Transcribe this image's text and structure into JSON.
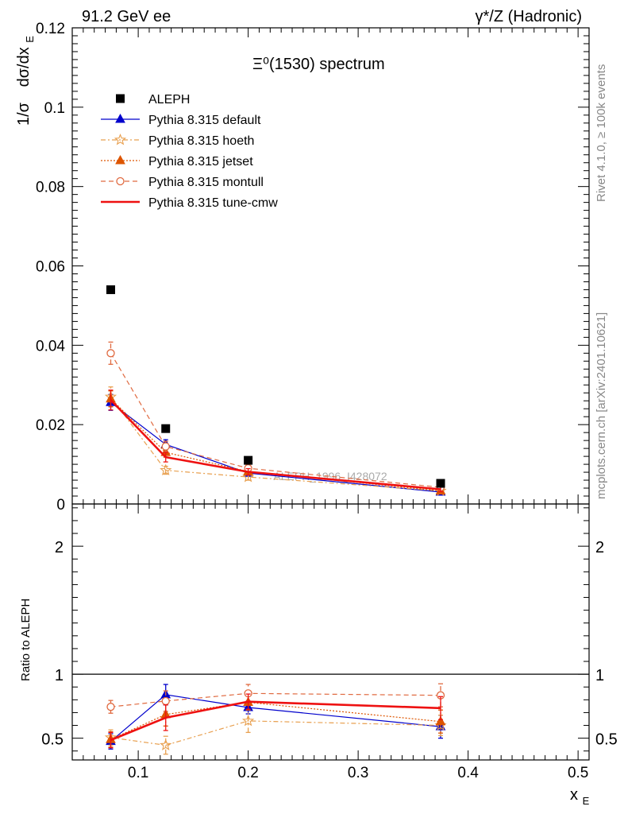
{
  "header": {
    "energy_label": "91.2 GeV ee",
    "process_label": "γ*/Z (Hadronic)"
  },
  "side": {
    "rivet_label": "Rivet 4.1.0, ≥ 100k events",
    "mcplots_label": "mcplots.cern.ch [arXiv:2401.10621]"
  },
  "chart_data": {
    "type": "scatter",
    "title": "Ξ⁰(1530) spectrum",
    "ylabel": "1/σ dσ/dx_E",
    "ylabel_parts": {
      "prefix": "1/σ",
      "d": "dσ/dx",
      "sub": "E"
    },
    "xlabel": "x_E",
    "xlabel_parts": {
      "main": "x",
      "sub": "E"
    },
    "ratio_ylabel": "Ratio to ALEPH",
    "watermark": "ALEPH_1996_I428072",
    "xlim": [
      0.04,
      0.51
    ],
    "ylim": [
      0,
      0.12
    ],
    "ratio_ylim": [
      0.33,
      2.33
    ],
    "x": [
      0.075,
      0.125,
      0.2,
      0.375
    ],
    "xticks": [
      0.1,
      0.2,
      0.3,
      0.4,
      0.5
    ],
    "xtick_labels": [
      "0.1",
      "0.2",
      "0.3",
      "0.4",
      "0.5"
    ],
    "yticks": [
      0,
      0.02,
      0.04,
      0.06,
      0.08,
      0.1,
      0.12
    ],
    "ytick_labels": [
      "0",
      "0.02",
      "0.04",
      "0.06",
      "0.08",
      "0.1",
      "0.12"
    ],
    "ratio_yticks": [
      0.5,
      1,
      2
    ],
    "ratio_ytick_labels": [
      "0.5",
      "1",
      "2"
    ],
    "data": {
      "name": "ALEPH",
      "values": [
        0.054,
        0.019,
        0.011,
        0.0052
      ],
      "color": "#000000"
    },
    "series": [
      {
        "name": "Pythia 8.315 default",
        "color": "#0000cc",
        "dash": "",
        "marker": "triangle",
        "width": 1.2,
        "values": [
          0.0256,
          0.015,
          0.0078,
          0.003
        ],
        "errors": [
          0.002,
          0.0012,
          0.0008,
          0.0005
        ],
        "ratio": [
          0.475,
          0.84,
          0.74,
          0.59
        ],
        "ratio_err": [
          0.06,
          0.08,
          0.05,
          0.09
        ]
      },
      {
        "name": "Pythia 8.315 hoeth",
        "color": "#e8a050",
        "dash": "6,3,2,3",
        "marker": "star",
        "width": 1.2,
        "values": [
          0.027,
          0.0085,
          0.0068,
          0.0033
        ],
        "errors": [
          0.0025,
          0.001,
          0.0008,
          0.0005
        ],
        "ratio": [
          0.505,
          0.445,
          0.635,
          0.6
        ],
        "ratio_err": [
          0.06,
          0.07,
          0.09,
          0.08
        ]
      },
      {
        "name": "Pythia 8.315 jetset",
        "color": "#dd5500",
        "dash": "2,2",
        "marker": "triangle",
        "width": 1.2,
        "values": [
          0.0265,
          0.013,
          0.0082,
          0.0033
        ],
        "errors": [
          0.002,
          0.0012,
          0.0008,
          0.0005
        ],
        "ratio": [
          0.49,
          0.685,
          0.78,
          0.63
        ],
        "ratio_err": [
          0.06,
          0.09,
          0.06,
          0.09
        ]
      },
      {
        "name": "Pythia 8.315 montull",
        "color": "#e06a40",
        "dash": "6,4",
        "marker": "circle",
        "width": 1.2,
        "values": [
          0.038,
          0.0145,
          0.009,
          0.0042
        ],
        "errors": [
          0.0028,
          0.0013,
          0.0008,
          0.0006
        ],
        "ratio": [
          0.745,
          0.79,
          0.85,
          0.835
        ],
        "ratio_err": [
          0.05,
          0.08,
          0.07,
          0.09
        ]
      },
      {
        "name": "Pythia 8.315 tune-cmw",
        "color": "#ee1111",
        "dash": "",
        "marker": "none",
        "width": 2.6,
        "values": [
          0.0262,
          0.0118,
          0.0081,
          0.0037
        ],
        "errors": [
          0.0025,
          0.0012,
          0.0008,
          0.0006
        ],
        "ratio": [
          0.485,
          0.66,
          0.785,
          0.735
        ],
        "ratio_err": [
          0.06,
          0.1,
          0.06,
          0.09
        ]
      }
    ]
  }
}
